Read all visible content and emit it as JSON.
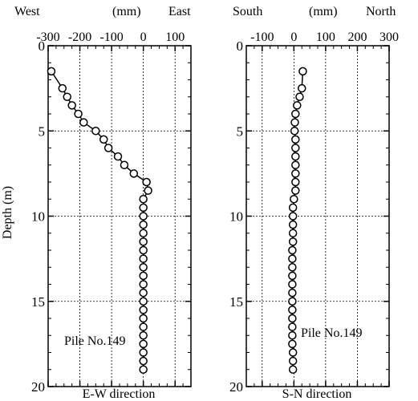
{
  "y_axis_label": "Depth (m)",
  "chart_data": [
    {
      "type": "line",
      "header_left": "West",
      "header_unit": "(mm)",
      "header_right": "East",
      "xlabel": "E-W direction",
      "ylabel": "Depth (m)",
      "annotation": "Pile No.149",
      "xlim": [
        -300,
        150
      ],
      "xticks": [
        -300,
        -200,
        -100,
        0,
        100
      ],
      "xtick_labels": [
        "-300",
        "-200",
        "-100",
        "0",
        "100"
      ],
      "ylim": [
        0,
        20
      ],
      "yticks": [
        0,
        5,
        10,
        15,
        20
      ],
      "ytick_labels": [
        "0",
        "5",
        "10",
        "15",
        "20"
      ],
      "grid": true,
      "series": [
        {
          "points": [
            [
              -290,
              1.5
            ],
            [
              -255,
              2.5
            ],
            [
              -240,
              3.0
            ],
            [
              -225,
              3.5
            ],
            [
              -205,
              4.0
            ],
            [
              -188,
              4.5
            ],
            [
              -150,
              5.0
            ],
            [
              -125,
              5.5
            ],
            [
              -110,
              6.0
            ],
            [
              -80,
              6.5
            ],
            [
              -60,
              7.0
            ],
            [
              -30,
              7.5
            ],
            [
              10,
              8.0
            ],
            [
              15,
              8.5
            ],
            [
              0,
              9.0
            ],
            [
              0,
              9.5
            ],
            [
              0,
              10.0
            ],
            [
              0,
              10.5
            ],
            [
              0,
              11.0
            ],
            [
              0,
              11.5
            ],
            [
              0,
              12.0
            ],
            [
              0,
              12.5
            ],
            [
              0,
              13.0
            ],
            [
              0,
              13.5
            ],
            [
              0,
              14.0
            ],
            [
              0,
              14.5
            ],
            [
              0,
              15.0
            ],
            [
              0,
              15.5
            ],
            [
              0,
              16.0
            ],
            [
              0,
              16.5
            ],
            [
              0,
              17.0
            ],
            [
              0,
              17.5
            ],
            [
              0,
              18.0
            ],
            [
              0,
              18.5
            ],
            [
              0,
              19.0
            ]
          ]
        }
      ]
    },
    {
      "type": "line",
      "header_left": "South",
      "header_unit": "(mm)",
      "header_right": "North",
      "xlabel": "S-N direction",
      "ylabel": "",
      "annotation": "Pile No.149",
      "xlim": [
        -150,
        300
      ],
      "xticks": [
        -100,
        0,
        100,
        200,
        300
      ],
      "xtick_labels": [
        "-100",
        "0",
        "100",
        "200",
        "300"
      ],
      "ylim": [
        0,
        20
      ],
      "yticks": [
        0,
        5,
        10,
        15,
        20
      ],
      "ytick_labels": [
        "0",
        "5",
        "10",
        "15",
        "20"
      ],
      "grid": true,
      "series": [
        {
          "points": [
            [
              28,
              1.5
            ],
            [
              25,
              2.5
            ],
            [
              18,
              3.0
            ],
            [
              10,
              3.5
            ],
            [
              5,
              4.0
            ],
            [
              3,
              4.5
            ],
            [
              2,
              5.0
            ],
            [
              5,
              5.5
            ],
            [
              5,
              6.0
            ],
            [
              5,
              6.5
            ],
            [
              5,
              7.0
            ],
            [
              5,
              7.5
            ],
            [
              5,
              8.0
            ],
            [
              5,
              8.5
            ],
            [
              0,
              9.0
            ],
            [
              -3,
              9.5
            ],
            [
              -3,
              10.0
            ],
            [
              -3,
              10.5
            ],
            [
              -3,
              11.0
            ],
            [
              -3,
              11.5
            ],
            [
              -5,
              12.0
            ],
            [
              -5,
              12.5
            ],
            [
              -5,
              13.0
            ],
            [
              -5,
              13.5
            ],
            [
              -5,
              14.0
            ],
            [
              -5,
              14.5
            ],
            [
              -5,
              15.0
            ],
            [
              -5,
              15.5
            ],
            [
              -5,
              16.0
            ],
            [
              -5,
              16.5
            ],
            [
              -5,
              17.0
            ],
            [
              -5,
              17.5
            ],
            [
              -3,
              18.0
            ],
            [
              -3,
              18.5
            ],
            [
              -3,
              19.0
            ]
          ]
        }
      ]
    }
  ]
}
